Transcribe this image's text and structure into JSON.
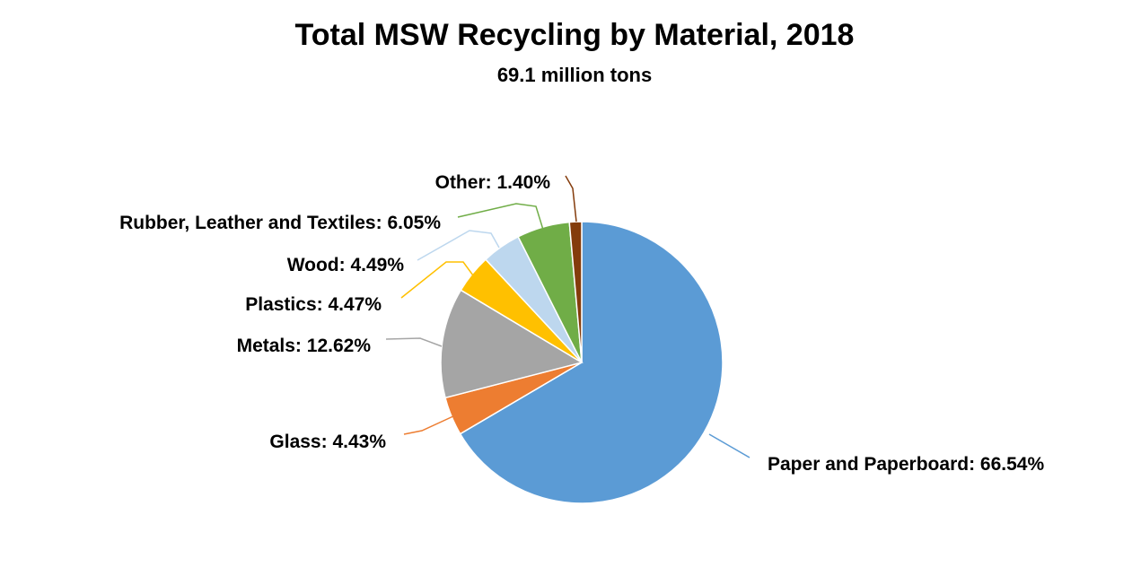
{
  "chart_data": {
    "type": "pie",
    "title": "Total MSW Recycling by Material, 2018",
    "subtitle": "69.1 million tons",
    "slices": [
      {
        "name": "Paper and Paperboard",
        "value": 66.54,
        "label": "Paper and Paperboard: 66.54%",
        "color": "#5B9BD5"
      },
      {
        "name": "Glass",
        "value": 4.43,
        "label": "Glass: 4.43%",
        "color": "#ED7D31"
      },
      {
        "name": "Metals",
        "value": 12.62,
        "label": "Metals: 12.62%",
        "color": "#A5A5A5"
      },
      {
        "name": "Plastics",
        "value": 4.47,
        "label": "Plastics: 4.47%",
        "color": "#FFC000"
      },
      {
        "name": "Wood",
        "value": 4.49,
        "label": "Wood: 4.49%",
        "color": "#F5C242"
      },
      {
        "name": "Rubber, Leather and Textiles",
        "value": 6.05,
        "label": "Rubber, Leather and Textiles: 6.05%",
        "color": "#BDD7EE"
      },
      {
        "name": "Other",
        "value": 1.4,
        "label": "Other: 1.40%",
        "color": "#70AD47"
      }
    ],
    "slice_colors_in_order": [
      "#5B9BD5",
      "#ED7D31",
      "#A5A5A5",
      "#FFC000",
      "#BDD7EE",
      "#70AD47",
      "#843C0C"
    ],
    "start_angle": "12 o'clock",
    "direction": "clockwise",
    "legend": "none"
  }
}
